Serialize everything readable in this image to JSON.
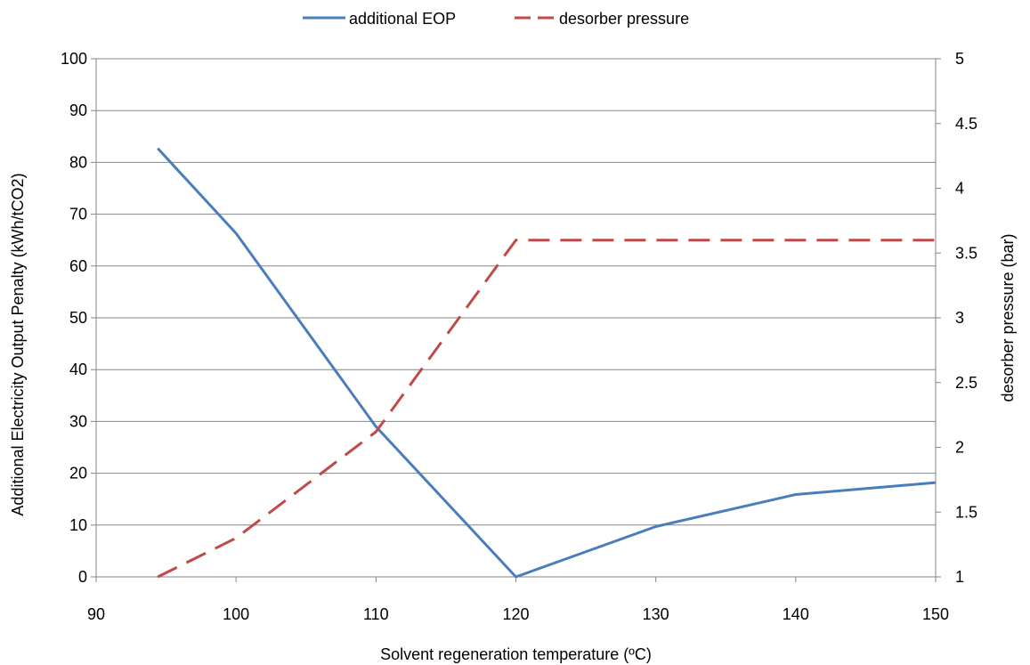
{
  "chart_data": {
    "type": "line",
    "xlabel": "Solvent regeneration temperature  (ºC)",
    "ylabel_left": "Additional  Electricity Output Penalty (kWh/tCO2)",
    "ylabel_right": "desorber pressure  (bar)",
    "xlim": [
      90,
      150
    ],
    "ylim_left": [
      0,
      100
    ],
    "ylim_right": [
      1,
      5
    ],
    "x_ticks": [
      "90",
      "100",
      "110",
      "120",
      "130",
      "140",
      "150"
    ],
    "y_left_ticks": [
      "0",
      "10",
      "20",
      "30",
      "40",
      "50",
      "60",
      "70",
      "80",
      "90",
      "100"
    ],
    "y_right_ticks": [
      "1",
      "1.5",
      "2",
      "2.5",
      "3",
      "3.5",
      "4",
      "4.5",
      "5"
    ],
    "grid": true,
    "legend_position": "top",
    "series": [
      {
        "name": "additional EOP",
        "axis": "left",
        "color": "#4a7ebb",
        "dash": "solid",
        "x": [
          94.4,
          100,
          110,
          120,
          130,
          140,
          150
        ],
        "y": [
          82.7,
          66.3,
          29.0,
          0.0,
          9.7,
          15.9,
          18.2
        ]
      },
      {
        "name": "desorber pressure",
        "axis": "right",
        "color": "#be4b48",
        "dash": "dashed",
        "x": [
          94.4,
          100,
          110,
          120,
          130,
          140,
          150
        ],
        "y": [
          1.0,
          1.3,
          2.12,
          3.6,
          3.6,
          3.6,
          3.6
        ]
      }
    ]
  }
}
